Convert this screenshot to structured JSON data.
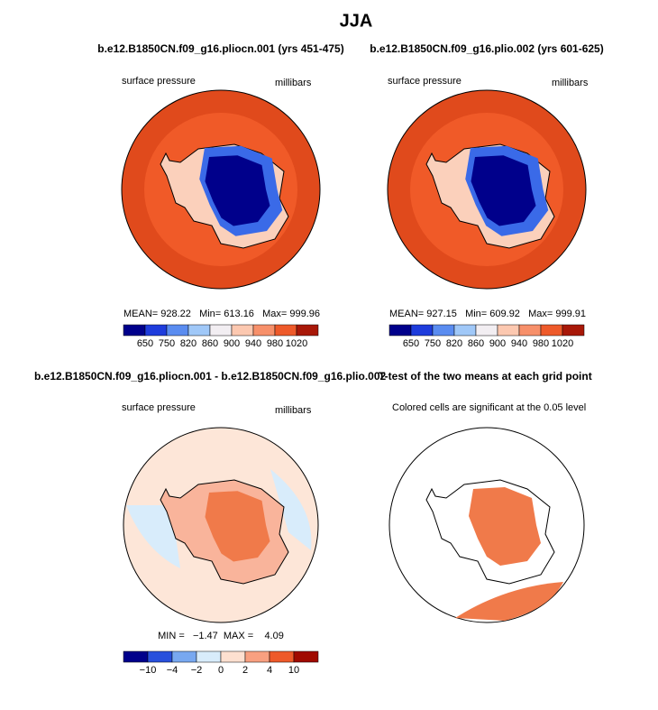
{
  "title": "JJA",
  "panels": [
    {
      "title": "b.e12.B1850CN.f09_g16.pliocn.001 (yrs 451-475)",
      "left_label": "surface pressure",
      "right_label": "millibars",
      "stats": "MEAN= 928.22   Min= 613.16   Max= 999.96",
      "colorbar": {
        "labels": [
          "650",
          "750",
          "820",
          "860",
          "900",
          "940",
          "980",
          "1020"
        ],
        "colors": [
          "#00008b",
          "#1e3cdc",
          "#5a8cf0",
          "#a0c8f8",
          "#f2eef2",
          "#fcc8b0",
          "#f7906a",
          "#ee5a2a",
          "#a81808"
        ]
      }
    },
    {
      "title": "b.e12.B1850CN.f09_g16.plio.002 (yrs 601-625)",
      "left_label": "surface pressure",
      "right_label": "millibars",
      "stats": "MEAN= 927.15   Min= 609.92   Max= 999.91",
      "colorbar": {
        "labels": [
          "650",
          "750",
          "820",
          "860",
          "900",
          "940",
          "980",
          "1020"
        ],
        "colors": [
          "#00008b",
          "#1e3cdc",
          "#5a8cf0",
          "#a0c8f8",
          "#f2eef2",
          "#fcc8b0",
          "#f7906a",
          "#ee5a2a",
          "#a81808"
        ]
      }
    },
    {
      "title": "b.e12.B1850CN.f09_g16.pliocn.001 - b.e12.B1850CN.f09_g16.plio.002",
      "left_label": "surface pressure",
      "right_label": "millibars",
      "stats": "MIN =   −1.47  MAX =    4.09",
      "colorbar": {
        "labels": [
          "−10",
          "−4",
          "−2",
          "0",
          "2",
          "4",
          "10"
        ],
        "colors": [
          "#00008b",
          "#2850dc",
          "#78a8f0",
          "#d8ecfb",
          "#fde0d0",
          "#f8a080",
          "#ee5a2a",
          "#a00a00"
        ]
      }
    },
    {
      "title": "T-test of the two means at each grid point",
      "left_label": "Colored cells are significant at the 0.05 level"
    }
  ]
}
